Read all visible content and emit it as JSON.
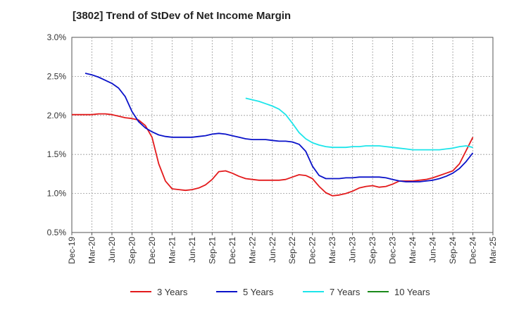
{
  "title": "[3802]  Trend of StDev of Net Income Margin",
  "chart_data": {
    "type": "line",
    "title": "[3802]  Trend of StDev of Net Income Margin",
    "xlabel": "",
    "ylabel": "",
    "ylim": [
      0.5,
      3.0
    ],
    "y_ticks": [
      "0.5%",
      "1.0%",
      "1.5%",
      "2.0%",
      "2.5%",
      "3.0%"
    ],
    "y_tick_values": [
      0.5,
      1.0,
      1.5,
      2.0,
      2.5,
      3.0
    ],
    "x_ticks": [
      "Dec-19",
      "Mar-20",
      "Jun-20",
      "Sep-20",
      "Dec-20",
      "Mar-21",
      "Jun-21",
      "Sep-21",
      "Dec-21",
      "Mar-22",
      "Jun-22",
      "Sep-22",
      "Dec-22",
      "Mar-23",
      "Jun-23",
      "Sep-23",
      "Dec-23",
      "Mar-24",
      "Jun-24",
      "Sep-24",
      "Dec-24",
      "Mar-25"
    ],
    "grid": "vertical dashed + horizontal dashed",
    "legend_position": "bottom",
    "series": [
      {
        "name": "3 Years",
        "color": "#e31a1c",
        "points": [
          [
            "Dec-19",
            2.01
          ],
          [
            "Jan-20",
            2.01
          ],
          [
            "Feb-20",
            2.01
          ],
          [
            "Mar-20",
            2.01
          ],
          [
            "Apr-20",
            2.02
          ],
          [
            "May-20",
            2.02
          ],
          [
            "Jun-20",
            2.01
          ],
          [
            "Jul-20",
            1.99
          ],
          [
            "Aug-20",
            1.97
          ],
          [
            "Sep-20",
            1.96
          ],
          [
            "Oct-20",
            1.94
          ],
          [
            "Nov-20",
            1.87
          ],
          [
            "Dec-20",
            1.72
          ],
          [
            "Jan-21",
            1.38
          ],
          [
            "Feb-21",
            1.16
          ],
          [
            "Mar-21",
            1.06
          ],
          [
            "Apr-21",
            1.05
          ],
          [
            "May-21",
            1.04
          ],
          [
            "Jun-21",
            1.05
          ],
          [
            "Jul-21",
            1.07
          ],
          [
            "Aug-21",
            1.11
          ],
          [
            "Sep-21",
            1.18
          ],
          [
            "Oct-21",
            1.28
          ],
          [
            "Nov-21",
            1.29
          ],
          [
            "Dec-21",
            1.26
          ],
          [
            "Jan-22",
            1.22
          ],
          [
            "Feb-22",
            1.19
          ],
          [
            "Mar-22",
            1.18
          ],
          [
            "Apr-22",
            1.17
          ],
          [
            "May-22",
            1.17
          ],
          [
            "Jun-22",
            1.17
          ],
          [
            "Jul-22",
            1.17
          ],
          [
            "Aug-22",
            1.18
          ],
          [
            "Sep-22",
            1.21
          ],
          [
            "Oct-22",
            1.24
          ],
          [
            "Nov-22",
            1.23
          ],
          [
            "Dec-22",
            1.19
          ],
          [
            "Jan-23",
            1.09
          ],
          [
            "Feb-23",
            1.01
          ],
          [
            "Mar-23",
            0.97
          ],
          [
            "Apr-23",
            0.98
          ],
          [
            "May-23",
            1.0
          ],
          [
            "Jun-23",
            1.03
          ],
          [
            "Jul-23",
            1.07
          ],
          [
            "Aug-23",
            1.09
          ],
          [
            "Sep-23",
            1.1
          ],
          [
            "Oct-23",
            1.08
          ],
          [
            "Nov-23",
            1.09
          ],
          [
            "Dec-23",
            1.12
          ],
          [
            "Jan-24",
            1.16
          ],
          [
            "Feb-24",
            1.16
          ],
          [
            "Mar-24",
            1.16
          ],
          [
            "Apr-24",
            1.17
          ],
          [
            "May-24",
            1.18
          ],
          [
            "Jun-24",
            1.2
          ],
          [
            "Jul-24",
            1.23
          ],
          [
            "Aug-24",
            1.26
          ],
          [
            "Sep-24",
            1.29
          ],
          [
            "Oct-24",
            1.38
          ],
          [
            "Nov-24",
            1.55
          ],
          [
            "Dec-24",
            1.72
          ]
        ]
      },
      {
        "name": "5 Years",
        "color": "#0a12c9",
        "points": [
          [
            "Feb-20",
            2.54
          ],
          [
            "Mar-20",
            2.52
          ],
          [
            "Apr-20",
            2.49
          ],
          [
            "May-20",
            2.45
          ],
          [
            "Jun-20",
            2.41
          ],
          [
            "Jul-20",
            2.35
          ],
          [
            "Aug-20",
            2.24
          ],
          [
            "Sep-20",
            2.05
          ],
          [
            "Oct-20",
            1.92
          ],
          [
            "Nov-20",
            1.84
          ],
          [
            "Dec-20",
            1.79
          ],
          [
            "Jan-21",
            1.75
          ],
          [
            "Feb-21",
            1.73
          ],
          [
            "Mar-21",
            1.72
          ],
          [
            "Apr-21",
            1.72
          ],
          [
            "May-21",
            1.72
          ],
          [
            "Jun-21",
            1.72
          ],
          [
            "Jul-21",
            1.73
          ],
          [
            "Aug-21",
            1.74
          ],
          [
            "Sep-21",
            1.76
          ],
          [
            "Oct-21",
            1.77
          ],
          [
            "Nov-21",
            1.76
          ],
          [
            "Dec-21",
            1.74
          ],
          [
            "Jan-22",
            1.72
          ],
          [
            "Feb-22",
            1.7
          ],
          [
            "Mar-22",
            1.69
          ],
          [
            "Apr-22",
            1.69
          ],
          [
            "May-22",
            1.69
          ],
          [
            "Jun-22",
            1.68
          ],
          [
            "Jul-22",
            1.67
          ],
          [
            "Aug-22",
            1.67
          ],
          [
            "Sep-22",
            1.66
          ],
          [
            "Oct-22",
            1.63
          ],
          [
            "Nov-22",
            1.54
          ],
          [
            "Dec-22",
            1.35
          ],
          [
            "Jan-23",
            1.23
          ],
          [
            "Feb-23",
            1.19
          ],
          [
            "Mar-23",
            1.19
          ],
          [
            "Apr-23",
            1.19
          ],
          [
            "May-23",
            1.2
          ],
          [
            "Jun-23",
            1.2
          ],
          [
            "Jul-23",
            1.21
          ],
          [
            "Aug-23",
            1.21
          ],
          [
            "Sep-23",
            1.21
          ],
          [
            "Oct-23",
            1.21
          ],
          [
            "Nov-23",
            1.2
          ],
          [
            "Dec-23",
            1.18
          ],
          [
            "Jan-24",
            1.16
          ],
          [
            "Feb-24",
            1.15
          ],
          [
            "Mar-24",
            1.15
          ],
          [
            "Apr-24",
            1.15
          ],
          [
            "May-24",
            1.16
          ],
          [
            "Jun-24",
            1.17
          ],
          [
            "Jul-24",
            1.19
          ],
          [
            "Aug-24",
            1.22
          ],
          [
            "Sep-24",
            1.26
          ],
          [
            "Oct-24",
            1.32
          ],
          [
            "Nov-24",
            1.41
          ],
          [
            "Dec-24",
            1.52
          ]
        ]
      },
      {
        "name": "7 Years",
        "color": "#1de5ea",
        "points": [
          [
            "Feb-22",
            2.22
          ],
          [
            "Mar-22",
            2.2
          ],
          [
            "Apr-22",
            2.18
          ],
          [
            "May-22",
            2.15
          ],
          [
            "Jun-22",
            2.12
          ],
          [
            "Jul-22",
            2.08
          ],
          [
            "Aug-22",
            2.01
          ],
          [
            "Sep-22",
            1.9
          ],
          [
            "Oct-22",
            1.78
          ],
          [
            "Nov-22",
            1.7
          ],
          [
            "Dec-22",
            1.65
          ],
          [
            "Jan-23",
            1.62
          ],
          [
            "Feb-23",
            1.6
          ],
          [
            "Mar-23",
            1.59
          ],
          [
            "Apr-23",
            1.59
          ],
          [
            "May-23",
            1.59
          ],
          [
            "Jun-23",
            1.6
          ],
          [
            "Jul-23",
            1.6
          ],
          [
            "Aug-23",
            1.61
          ],
          [
            "Sep-23",
            1.61
          ],
          [
            "Oct-23",
            1.61
          ],
          [
            "Nov-23",
            1.6
          ],
          [
            "Dec-23",
            1.59
          ],
          [
            "Jan-24",
            1.58
          ],
          [
            "Feb-24",
            1.57
          ],
          [
            "Mar-24",
            1.56
          ],
          [
            "Apr-24",
            1.56
          ],
          [
            "May-24",
            1.56
          ],
          [
            "Jun-24",
            1.56
          ],
          [
            "Jul-24",
            1.56
          ],
          [
            "Aug-24",
            1.57
          ],
          [
            "Sep-24",
            1.58
          ],
          [
            "Oct-24",
            1.6
          ],
          [
            "Nov-24",
            1.61
          ],
          [
            "Dec-24",
            1.59
          ]
        ]
      },
      {
        "name": "10 Years",
        "color": "#1a8a1a",
        "points": []
      }
    ]
  }
}
